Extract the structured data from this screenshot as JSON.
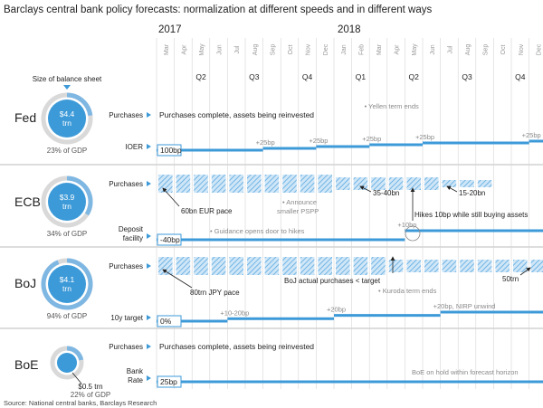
{
  "title": "Barclays central bank policy forecasts: normalization at different speeds and in different ways",
  "source": "Source: National central banks, Barclays Research",
  "balance_sheet_header": "Size of balance sheet",
  "colors": {
    "accent": "#3d9ad8",
    "hatch": "#8ec3ea",
    "grid": "#d5d5d5",
    "ring": "#d9d9d9",
    "text_gray": "#8a8a8a"
  },
  "timeline": {
    "years": [
      "2017",
      "2018"
    ],
    "months": [
      "Mar",
      "Apr",
      "May",
      "Jun",
      "Jul",
      "Aug",
      "Sep",
      "Oct",
      "Nov",
      "Dec",
      "Jan",
      "Feb",
      "Mar",
      "Apr",
      "May",
      "Jun",
      "Jul",
      "Aug",
      "Sep",
      "Oct",
      "Nov",
      "Dec"
    ],
    "quarters": [
      "Q2",
      "Q3",
      "Q4",
      "Q1",
      "Q2",
      "Q3",
      "Q4"
    ]
  },
  "chart_data": {
    "type": "timeline",
    "banks": [
      {
        "name": "Fed",
        "balance_sheet": "$4.4 trn",
        "balance_sheet_lines": [
          "$4.4",
          "trn"
        ],
        "gdp_share": "23% of GDP",
        "gdp_pct": 23,
        "rows": [
          {
            "label": "Purchases",
            "label_lines": [
              "Purchases"
            ],
            "text": "Purchases complete, assets being reinvested",
            "hatched": false
          },
          {
            "label": "IOER",
            "label_lines": [
              "IOER"
            ],
            "start_value": "100bp",
            "steps": [
              {
                "month": "2017-03",
                "level": 100
              },
              {
                "month": "2017-09",
                "level": 125
              },
              {
                "month": "2017-12",
                "level": 150
              },
              {
                "month": "2018-03",
                "level": 175
              },
              {
                "month": "2018-06",
                "level": 200
              },
              {
                "month": "2018-12",
                "level": 225
              }
            ],
            "hike_labels": [
              "+25bp",
              "+25bp",
              "+25bp",
              "+25bp",
              "+25bp"
            ]
          }
        ],
        "annotations": [
          {
            "text": "Yellen term ends",
            "month": "2018-02"
          }
        ]
      },
      {
        "name": "ECB",
        "balance_sheet": "$3.9 trn",
        "balance_sheet_lines": [
          "$3.9",
          "trn"
        ],
        "gdp_share": "34% of GDP",
        "gdp_pct": 34,
        "rows": [
          {
            "label": "Purchases",
            "label_lines": [
              "Purchases"
            ],
            "hatched": true,
            "pace_labels": [
              "60bn EUR pace",
              "35-40bn",
              "15-20bn"
            ],
            "tapering": [
              {
                "from": "2017-03",
                "to": "2017-12",
                "pace": "60bn EUR"
              },
              {
                "from": "2018-01",
                "to": "2018-06",
                "pace": "35-40bn"
              },
              {
                "from": "2018-07",
                "to": "2018-09",
                "pace": "15-20bn"
              }
            ]
          },
          {
            "label": "Deposit facility",
            "label_lines": [
              "Deposit",
              "facility"
            ],
            "start_value": "-40bp",
            "steps": [
              {
                "month": "2017-03",
                "level": -40
              },
              {
                "month": "2018-05",
                "level": -30
              }
            ],
            "hike_labels": [
              "+10bp"
            ]
          }
        ],
        "annotations": [
          {
            "text": "Announce smaller PSPP",
            "lines": [
              "Announce",
              "smaller PSPP"
            ],
            "month": "2017-11"
          },
          {
            "text": "Hikes 10bp while still buying assets",
            "month": "2018-05"
          },
          {
            "text": "Guidance opens door to  hikes",
            "month": "2017-06"
          }
        ]
      },
      {
        "name": "BoJ",
        "balance_sheet": "$4.1 trn",
        "balance_sheet_lines": [
          "$4.1",
          "trn"
        ],
        "gdp_share": "94% of GDP",
        "gdp_pct": 94,
        "rows": [
          {
            "label": "Purchases",
            "label_lines": [
              "Purchases"
            ],
            "hatched": true,
            "pace_labels": [
              "80trn JPY pace",
              "50trn"
            ],
            "tapering": [
              {
                "from": "2017-03",
                "to": "2018-03",
                "pace": "80trn JPY"
              },
              {
                "from": "2018-04",
                "to": "2018-12",
                "pace": "50trn"
              }
            ]
          },
          {
            "label": "10y target",
            "label_lines": [
              "10y target"
            ],
            "start_value": "0%",
            "steps": [
              {
                "month": "2017-03",
                "level": 0
              },
              {
                "month": "2017-07",
                "level": 15
              },
              {
                "month": "2018-01",
                "level": 35
              },
              {
                "month": "2018-07",
                "level": 55
              }
            ],
            "hike_labels": [
              "+10-20bp",
              "+20bp",
              "+20bp, NIRP unwind"
            ]
          }
        ],
        "annotations": [
          {
            "text": "BoJ actual purchases < target",
            "month": "2018-03"
          },
          {
            "text": "Kuroda term ends",
            "month": "2018-04"
          }
        ]
      },
      {
        "name": "BoE",
        "balance_sheet": "$0.5 trn",
        "balance_sheet_lines": [
          "$0.5 trn"
        ],
        "gdp_share": "22% of GDP",
        "gdp_pct": 22,
        "rows": [
          {
            "label": "Purchases",
            "label_lines": [
              "Purchases"
            ],
            "text": "Purchases complete, assets being reinvested",
            "hatched": false
          },
          {
            "label": "Bank Rate",
            "label_lines": [
              "Bank",
              "Rate"
            ],
            "start_value": "25bp",
            "steps": [
              {
                "month": "2017-03",
                "level": 25
              }
            ],
            "hike_labels": []
          }
        ],
        "annotations": [
          {
            "text": "BoE on hold within forecast horizon",
            "month": "2018-05"
          }
        ]
      }
    ]
  }
}
